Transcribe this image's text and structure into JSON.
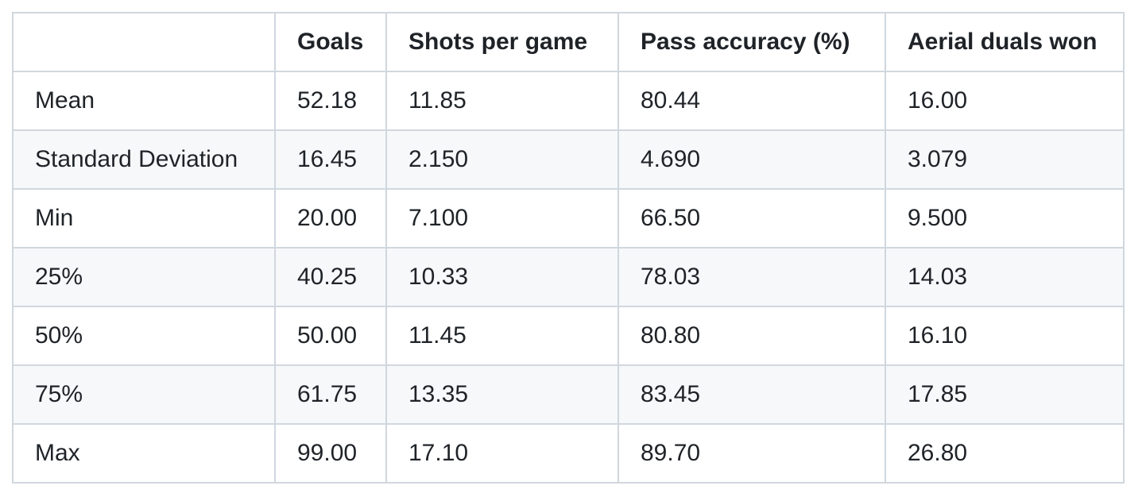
{
  "table": {
    "headers": [
      "",
      "Goals",
      "Shots per game",
      "Pass accuracy (%)",
      "Aerial duals won"
    ],
    "rows": [
      [
        "Mean",
        "52.18",
        "11.85",
        "80.44",
        "16.00"
      ],
      [
        "Standard Deviation",
        "16.45",
        "2.150",
        "4.690",
        "3.079"
      ],
      [
        "Min",
        "20.00",
        "7.100",
        "66.50",
        "9.500"
      ],
      [
        "25%",
        "40.25",
        "10.33",
        "78.03",
        "14.03"
      ],
      [
        "50%",
        "50.00",
        "11.45",
        "80.80",
        "16.10"
      ],
      [
        "75%",
        "61.75",
        "13.35",
        "83.45",
        "17.85"
      ],
      [
        "Max",
        "99.00",
        "17.10",
        "89.70",
        "26.80"
      ]
    ]
  }
}
